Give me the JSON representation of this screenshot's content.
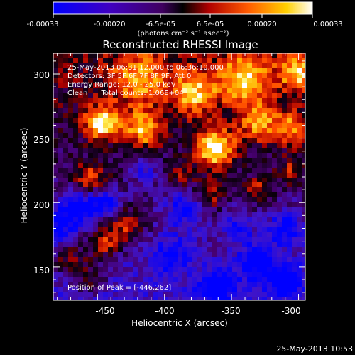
{
  "colorbar": {
    "ticks": [
      "-0.00033",
      "-0.00020",
      "-6.5e-05",
      "6.5e-05",
      "0.00020",
      "0.00033"
    ],
    "units": "(photons cm⁻² s⁻¹ asec⁻²)"
  },
  "title": "Reconstructed RHESSI Image",
  "info": {
    "time": "25-May-2013 06:31:12.000 to 06:36:10.000",
    "detectors": "Detectors: 3F 5F 6F 7F 8F 9F, Att 0",
    "energy": "Energy Range: 12.0 - 25.0 keV",
    "clean": "Clean      Total counts: 1.06E+04",
    "peak": "Position of Peak = [-446,262]"
  },
  "axes": {
    "xlabel": "Heliocentric X (arcsec)",
    "ylabel": "Heliocentric Y (arcsec)",
    "x_ticks": [
      "-450",
      "-400",
      "-350",
      "-300"
    ],
    "y_ticks": [
      "300",
      "250",
      "200",
      "150"
    ],
    "xlim": [
      -483,
      -295
    ],
    "ylim": [
      124,
      316
    ]
  },
  "timestamp": "25-May-2013 10:53",
  "colors": {
    "low": "#0000ff",
    "mid": "#cc0000",
    "high": "#ffffff",
    "background": "#000000"
  },
  "image": {
    "peak_x": -446,
    "peak_y": 262
  }
}
